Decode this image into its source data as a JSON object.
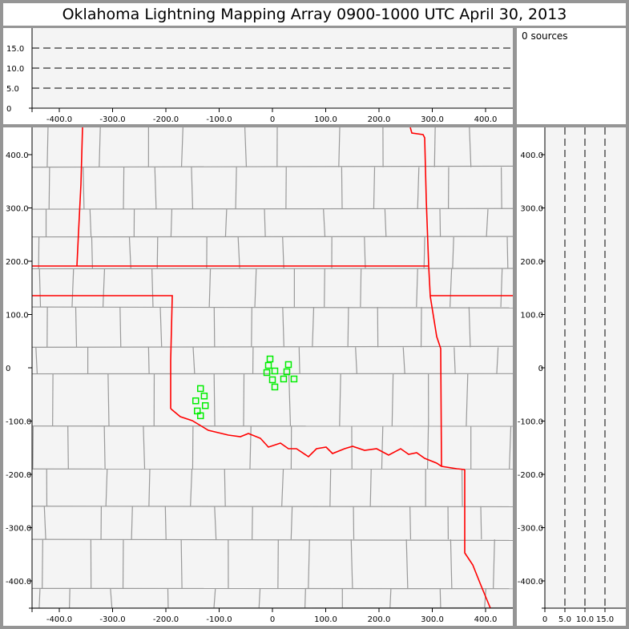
{
  "title": "Oklahoma Lightning Mapping Array   0900-1000 UTC  April 30, 2013",
  "sources_label": "0 sources",
  "colors": {
    "state_border": "#ff0000",
    "county_line": "#999999",
    "station": "#00ee00",
    "plot_bg": "#f4f4f4"
  },
  "chart_data": [
    {
      "type": "scatter",
      "panel": "altitude-vs-east-west",
      "xlim": [
        -450,
        450
      ],
      "ylim": [
        0,
        20
      ],
      "x_ticks": [
        "-400.0",
        "-300.0",
        "-200.0",
        "-100.0",
        "0",
        "100.0",
        "200.0",
        "300.0",
        "400.0"
      ],
      "y_ticks": [
        "0",
        "5.0",
        "10.0",
        "15.0"
      ],
      "grid": "dashed at 5, 10, 15",
      "points": []
    },
    {
      "type": "scatter",
      "panel": "plan-view-map",
      "xlim": [
        -450,
        450
      ],
      "ylim": [
        -450,
        450
      ],
      "x_ticks": [
        "-400.0",
        "-300.0",
        "-200.0",
        "-100.0",
        "0",
        "100.0",
        "200.0",
        "300.0",
        "400.0"
      ],
      "y_ticks": [
        "400.0",
        "300.0",
        "200.0",
        "100.0",
        "0",
        "-100.0",
        "-200.0",
        "-300.0",
        "-400.0"
      ],
      "stations": [
        {
          "x": -4.5,
          "y": 16.5
        },
        {
          "x": -7.5,
          "y": 4.5
        },
        {
          "x": -10.5,
          "y": -9
        },
        {
          "x": 4.5,
          "y": -6
        },
        {
          "x": 30,
          "y": 6
        },
        {
          "x": 27,
          "y": -7.5
        },
        {
          "x": 0,
          "y": -22.5
        },
        {
          "x": 21,
          "y": -21
        },
        {
          "x": 40.5,
          "y": -21
        },
        {
          "x": 4.5,
          "y": -36
        },
        {
          "x": -135,
          "y": -39
        },
        {
          "x": -128,
          "y": -53
        },
        {
          "x": -144,
          "y": -62
        },
        {
          "x": -126,
          "y": -71
        },
        {
          "x": -141,
          "y": -81
        },
        {
          "x": -135,
          "y": -90
        }
      ]
    },
    {
      "type": "scatter",
      "panel": "north-south-vs-altitude",
      "xlim": [
        0,
        20
      ],
      "ylim": [
        -450,
        450
      ],
      "x_ticks": [
        "0",
        "5.0",
        "10.0",
        "15.0"
      ],
      "y_ticks": [
        "400.0",
        "300.0",
        "200.0",
        "100.0",
        "0",
        "-100.0",
        "-200.0",
        "-300.0",
        "-400.0"
      ],
      "grid": "dashed at 5, 10, 15",
      "points": []
    }
  ]
}
